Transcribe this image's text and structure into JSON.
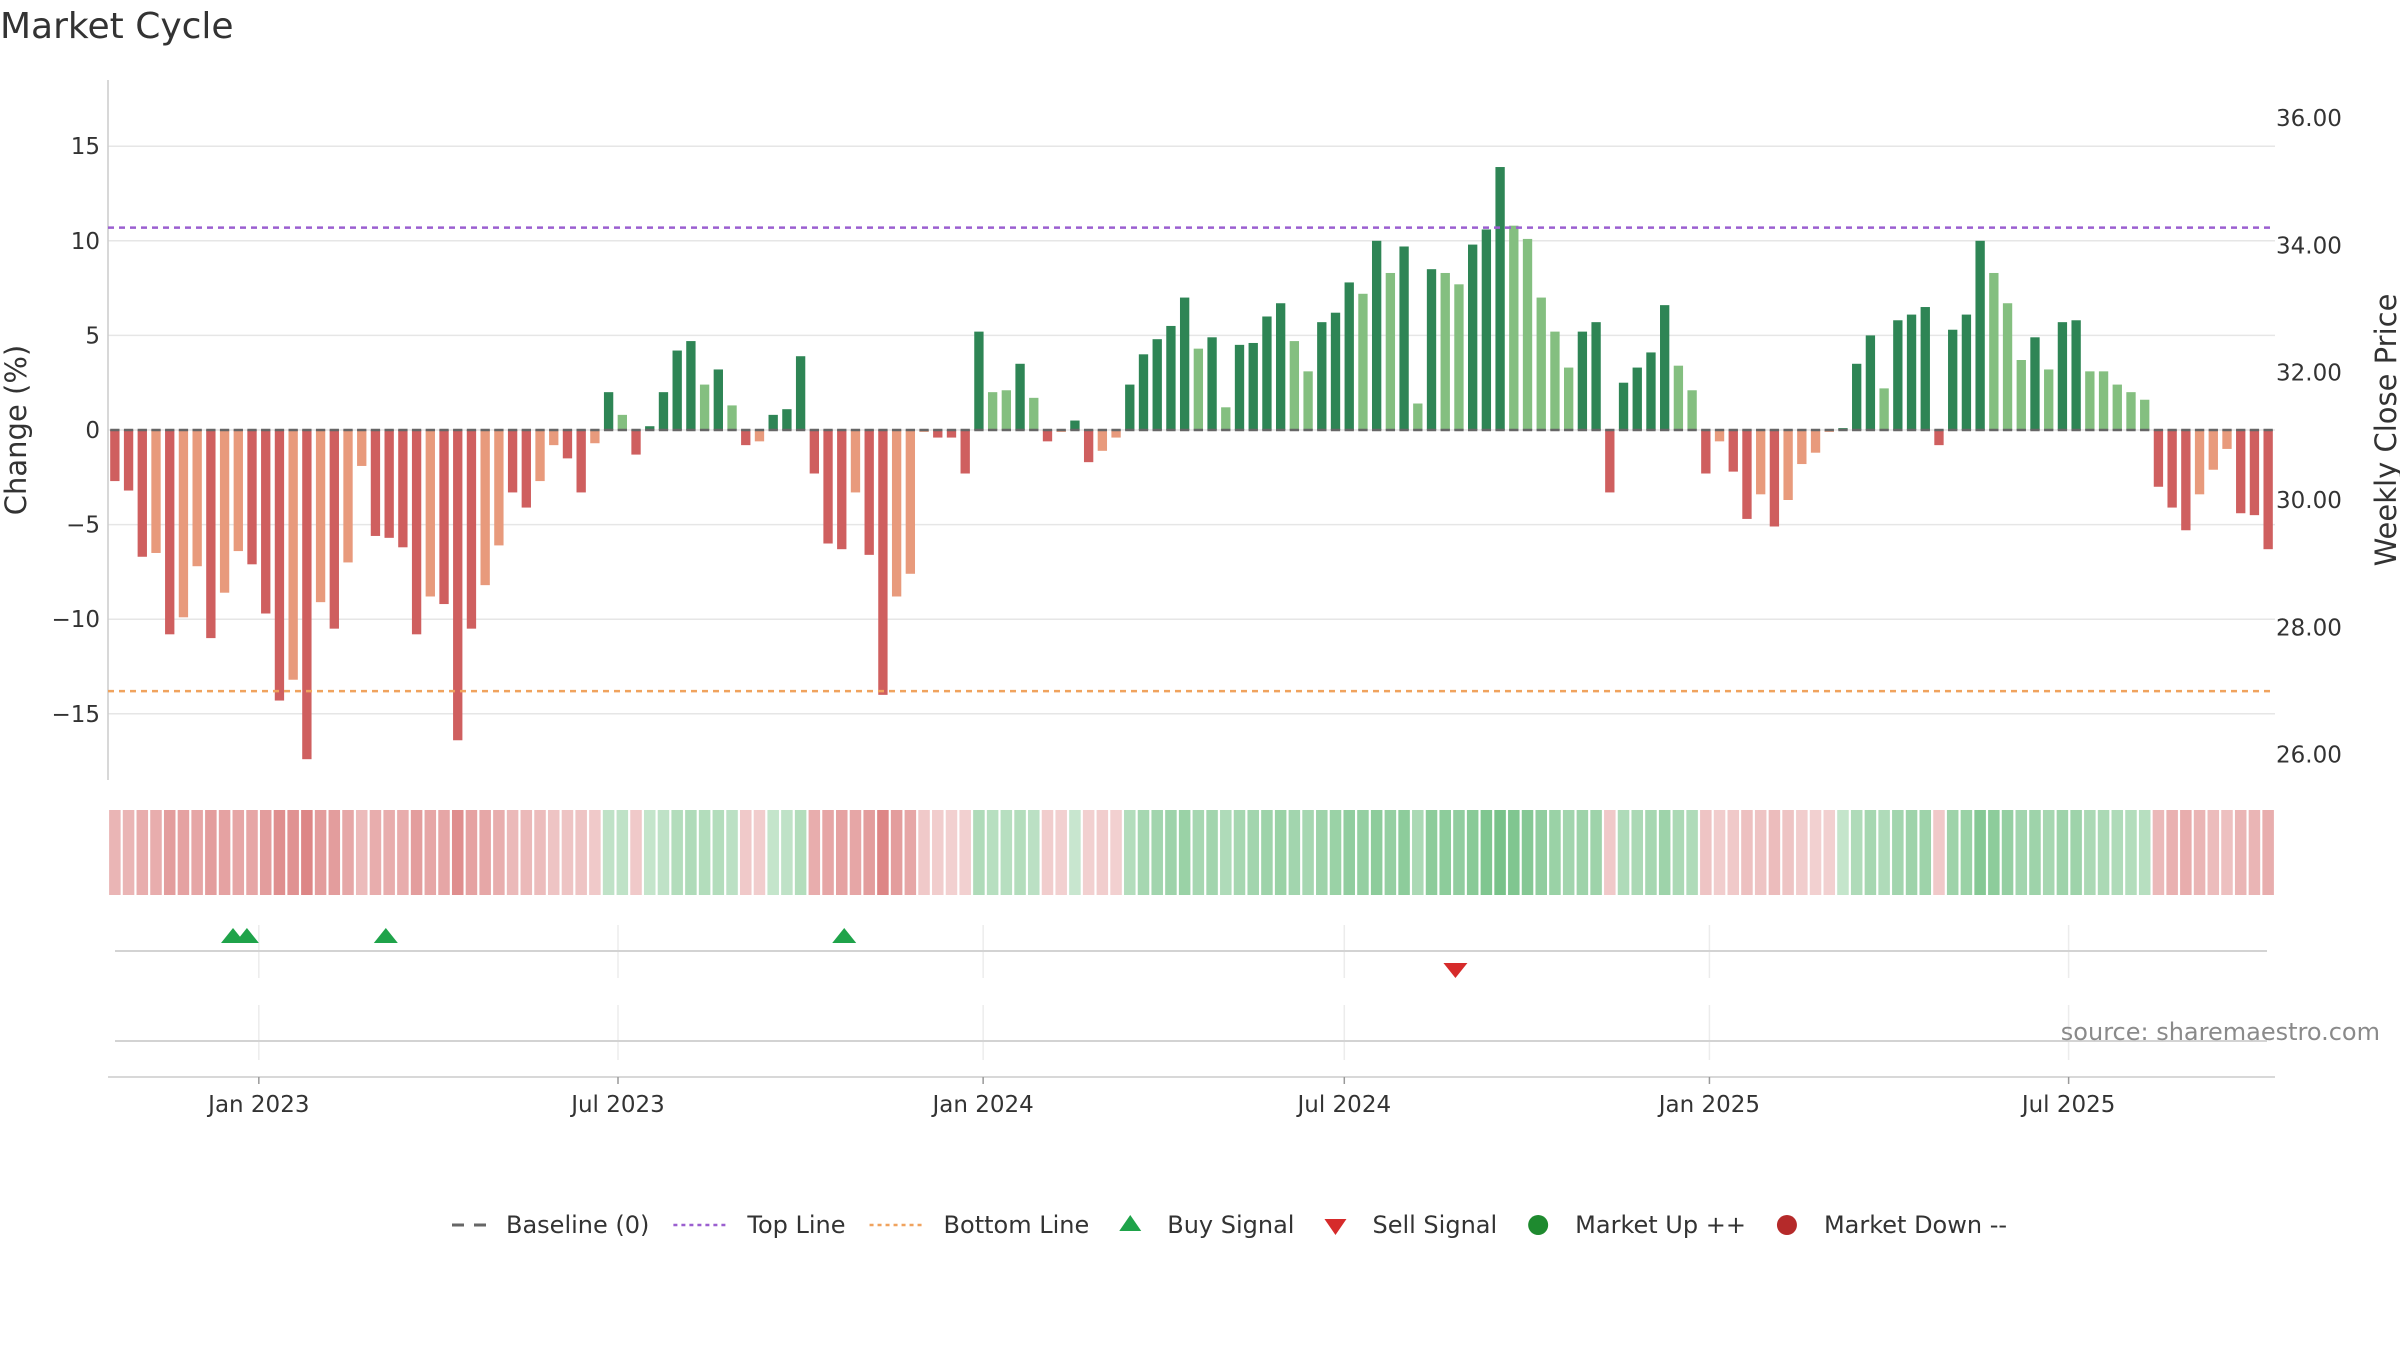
{
  "title": "Market Cycle",
  "source": "source: sharemaestro.com",
  "chart_data": {
    "type": "bar",
    "title": "Market Cycle",
    "ylabel": "Change (%)",
    "y2label": "Weekly Close Price",
    "ylim": [
      -18.5,
      18.5
    ],
    "y2lim": [
      25.6,
      36.6
    ],
    "yticks": [
      "15",
      "10",
      "5",
      "0",
      "−5",
      "−10",
      "−15"
    ],
    "ytick_values": [
      15,
      10,
      5,
      0,
      -5,
      -10,
      -15
    ],
    "y2ticks": [
      "36.00",
      "34.00",
      "32.00",
      "30.00",
      "28.00",
      "26.00"
    ],
    "y2tick_values": [
      36,
      34,
      32,
      30,
      28,
      26
    ],
    "x_start": "2022-10-17",
    "x_end": "2025-10-13",
    "xticks": [
      {
        "date": "2023-01-01",
        "label": "Jan 2023"
      },
      {
        "date": "2023-07-01",
        "label": "Jul 2023"
      },
      {
        "date": "2024-01-01",
        "label": "Jan 2024"
      },
      {
        "date": "2024-07-01",
        "label": "Jul 2024"
      },
      {
        "date": "2025-01-01",
        "label": "Jan 2025"
      },
      {
        "date": "2025-07-01",
        "label": "Jul 2025"
      }
    ],
    "top_line": 10.7,
    "bottom_line": -13.8,
    "baseline": 0,
    "colors": {
      "up_strong": "#2e8555",
      "up_weak": "#84bf80",
      "down_strong": "#cf5f5f",
      "down_weak": "#e89a7c",
      "top_line": "#9b5fd0",
      "bottom_line": "#f0a35e",
      "baseline": "#666666",
      "buy": "#1fa34a",
      "sell": "#d62b2b",
      "market_up": "#1e8a2f",
      "market_down": "#b52a2a"
    },
    "series": [
      {
        "values": [
          -2.7,
          -3.2,
          -6.7,
          -6.5,
          -10.8,
          -9.9,
          -7.2,
          -11,
          -8.6,
          -6.4,
          -7.1,
          -9.7,
          -14.3,
          -13.2,
          -17.4,
          -9.1,
          -10.5,
          -7,
          -1.9,
          -5.6,
          -5.7,
          -6.2,
          -10.8,
          -8.8,
          -9.2,
          -16.4,
          -10.5,
          -8.2,
          -6.1,
          -3.3,
          -4.1,
          -2.7,
          -0.8,
          -1.5,
          -3.3,
          -0.7,
          2,
          0.8,
          -1.3,
          0.2,
          2,
          4.2,
          4.7,
          2.4,
          3.2,
          1.3,
          -0.8,
          -0.6,
          0.8,
          1.1,
          3.9,
          -2.3,
          -6,
          -6.3,
          -3.3,
          -6.6,
          -14,
          -8.8,
          -7.6,
          -0.1,
          -0.4,
          -0.4,
          -2.3,
          5.2,
          2,
          2.1,
          3.5,
          1.7,
          -0.6,
          -0.1,
          0.5,
          -1.7,
          -1.1,
          -0.4,
          2.4,
          4,
          4.8,
          5.5,
          7,
          4.3,
          4.9,
          1.2,
          4.5,
          4.6,
          6,
          6.7,
          4.7,
          3.1,
          5.7,
          6.2,
          7.8,
          7.2,
          10,
          8.3,
          9.7,
          1.4,
          8.5,
          8.3,
          7.7,
          9.8,
          10.6,
          13.9,
          10.8,
          10.1,
          7,
          5.2,
          3.3,
          5.2,
          5.7,
          -3.3,
          2.5,
          3.3,
          4.1,
          6.6,
          3.4,
          2.1,
          -2.3,
          -0.6,
          -2.2,
          -4.7,
          -3.4,
          -5.1,
          -3.7,
          -1.8,
          -1.2,
          -0.1,
          0.1,
          3.5,
          5,
          2.2,
          5.8,
          6.1,
          6.5,
          -0.8,
          5.3,
          6.1,
          10,
          8.3,
          6.7,
          3.7,
          4.9,
          3.2,
          5.7,
          5.8,
          3.1,
          3.1,
          2.4,
          2,
          1.6,
          -3,
          -4.1,
          -5.3,
          -3.4,
          -2.1,
          -1,
          -4.4,
          -4.5,
          -6.3
        ],
        "strong": [
          1,
          1,
          1,
          0,
          1,
          0,
          0,
          1,
          0,
          0,
          1,
          1,
          1,
          0,
          1,
          0,
          1,
          0,
          0,
          1,
          1,
          1,
          1,
          0,
          1,
          1,
          1,
          0,
          0,
          1,
          1,
          0,
          0,
          1,
          1,
          0,
          1,
          0,
          1,
          1,
          1,
          1,
          1,
          0,
          1,
          0,
          1,
          0,
          1,
          1,
          1,
          1,
          1,
          1,
          0,
          1,
          1,
          0,
          0,
          0,
          1,
          1,
          1,
          1,
          0,
          0,
          1,
          0,
          1,
          0,
          1,
          1,
          0,
          0,
          1,
          1,
          1,
          1,
          1,
          0,
          1,
          0,
          1,
          1,
          1,
          1,
          0,
          0,
          1,
          1,
          1,
          0,
          1,
          0,
          1,
          0,
          1,
          0,
          0,
          1,
          1,
          1,
          0,
          0,
          0,
          0,
          0,
          1,
          1,
          1,
          1,
          1,
          1,
          1,
          0,
          0,
          1,
          0,
          1,
          1,
          0,
          1,
          0,
          0,
          0,
          0,
          1,
          1,
          1,
          0,
          1,
          1,
          1,
          1,
          1,
          1,
          1,
          0,
          0,
          0,
          1,
          0,
          1,
          1,
          0,
          0,
          0,
          0,
          0,
          1,
          1,
          1,
          0,
          0,
          0,
          1,
          1,
          1
        ]
      }
    ],
    "strip_levels": [
      0.38,
      0.38,
      0.42,
      0.42,
      0.5,
      0.48,
      0.46,
      0.5,
      0.48,
      0.46,
      0.46,
      0.5,
      0.58,
      0.56,
      0.62,
      0.5,
      0.5,
      0.45,
      0.35,
      0.42,
      0.42,
      0.42,
      0.5,
      0.46,
      0.46,
      0.58,
      0.48,
      0.45,
      0.42,
      0.36,
      0.36,
      0.34,
      0.3,
      0.3,
      0.3,
      0.28,
      0.3,
      0.3,
      0.28,
      0.28,
      0.3,
      0.36,
      0.38,
      0.36,
      0.36,
      0.32,
      0.28,
      0.26,
      0.28,
      0.3,
      0.36,
      0.42,
      0.46,
      0.48,
      0.46,
      0.5,
      0.62,
      0.5,
      0.46,
      0.28,
      0.26,
      0.24,
      0.24,
      0.38,
      0.34,
      0.34,
      0.36,
      0.32,
      0.26,
      0.24,
      0.26,
      0.24,
      0.26,
      0.24,
      0.36,
      0.42,
      0.44,
      0.46,
      0.48,
      0.42,
      0.44,
      0.38,
      0.42,
      0.44,
      0.46,
      0.48,
      0.44,
      0.42,
      0.46,
      0.48,
      0.52,
      0.5,
      0.54,
      0.5,
      0.54,
      0.4,
      0.54,
      0.54,
      0.52,
      0.56,
      0.6,
      0.64,
      0.6,
      0.58,
      0.52,
      0.48,
      0.44,
      0.46,
      0.46,
      0.28,
      0.38,
      0.4,
      0.42,
      0.46,
      0.4,
      0.38,
      0.3,
      0.26,
      0.28,
      0.32,
      0.3,
      0.34,
      0.3,
      0.26,
      0.24,
      0.24,
      0.28,
      0.38,
      0.42,
      0.38,
      0.44,
      0.46,
      0.46,
      0.28,
      0.46,
      0.48,
      0.58,
      0.54,
      0.5,
      0.44,
      0.46,
      0.42,
      0.46,
      0.46,
      0.4,
      0.4,
      0.38,
      0.36,
      0.34,
      0.36,
      0.4,
      0.42,
      0.38,
      0.34,
      0.32,
      0.38,
      0.38,
      0.42
    ],
    "buy_signals": [
      "2022-12-19",
      "2022-12-26",
      "2023-03-06",
      "2023-10-23"
    ],
    "sell_signals": [
      "2024-08-26"
    ],
    "legend": [
      {
        "label": "Baseline (0)",
        "symbol": "dash",
        "color": "#666666"
      },
      {
        "label": "Top Line",
        "symbol": "dotline",
        "color": "#9b5fd0"
      },
      {
        "label": "Bottom Line",
        "symbol": "dotline",
        "color": "#f0a35e"
      },
      {
        "label": "Buy Signal",
        "symbol": "triangle-up",
        "color": "#1fa34a"
      },
      {
        "label": "Sell Signal",
        "symbol": "triangle-down",
        "color": "#d62b2b"
      },
      {
        "label": "Market Up ++",
        "symbol": "circle",
        "color": "#1e8a2f"
      },
      {
        "label": "Market Down --",
        "symbol": "circle",
        "color": "#b52a2a"
      }
    ]
  }
}
